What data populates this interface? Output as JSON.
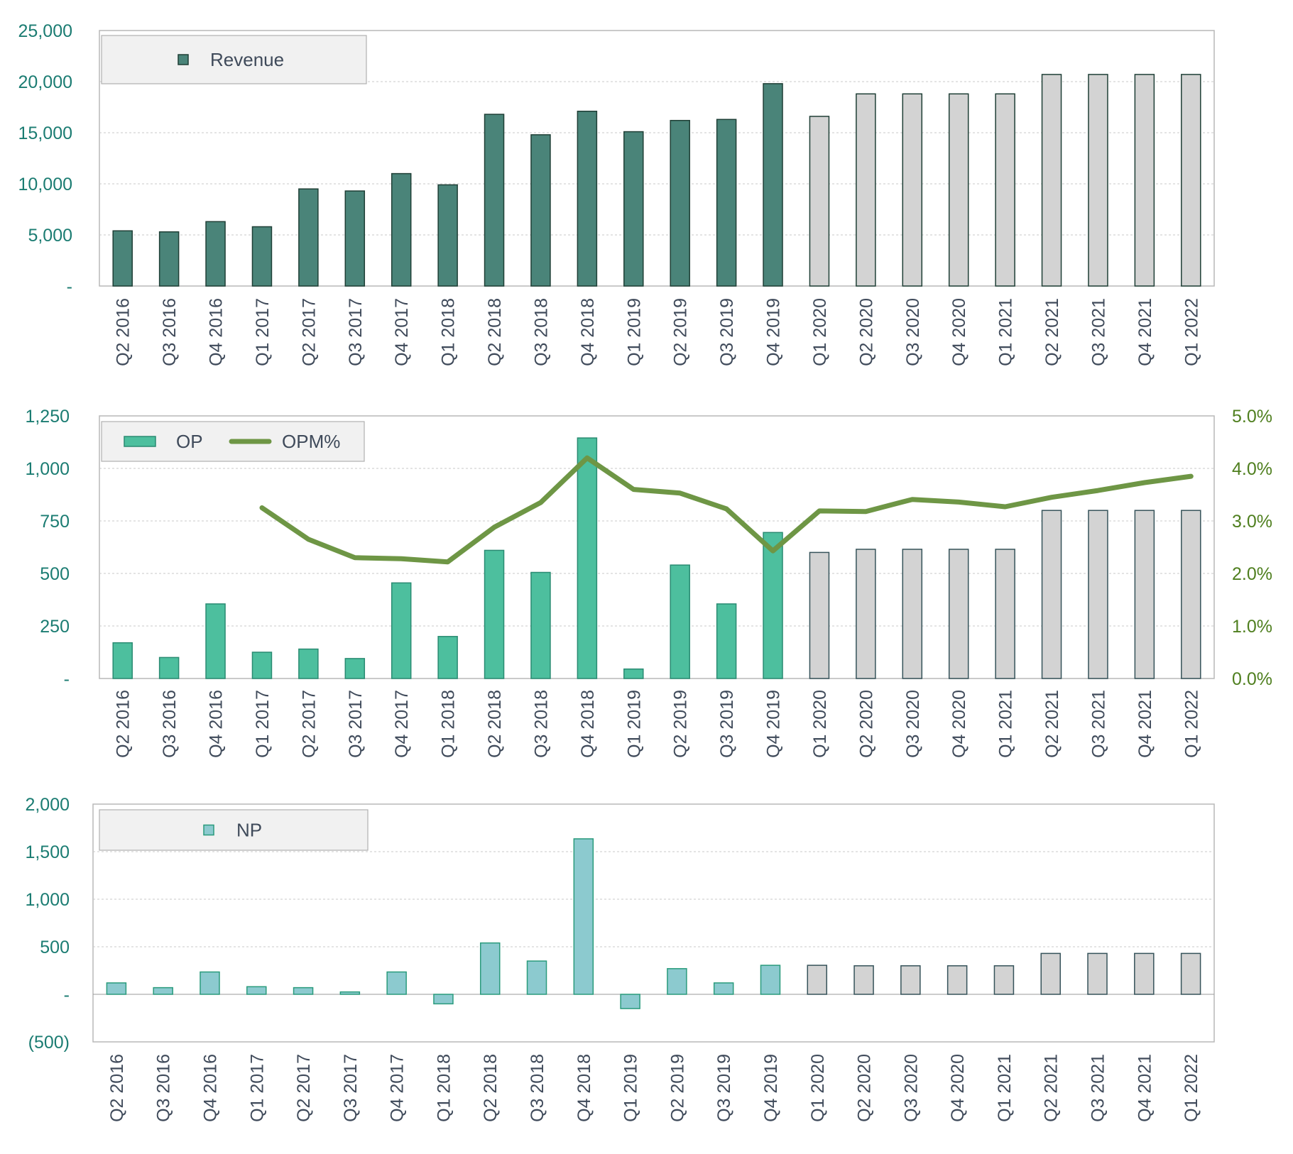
{
  "colors": {
    "revenue_actual": "#4a8479",
    "revenue_forecast": "#d3d3d3",
    "op_actual": "#4dbf9e",
    "np_actual": "#8ccacf",
    "forecast": "#d3d3d3",
    "opm_line": "#6e9645",
    "axis_left": "#1b7c72",
    "axis_right": "#4f7f1f",
    "tick_text": "#3f4a5a",
    "legend_bg": "#f1f1f1"
  },
  "chart_data": [
    {
      "id": "revenue",
      "type": "bar",
      "categories": [
        "Q2 2016",
        "Q3 2016",
        "Q4 2016",
        "Q1 2017",
        "Q2 2017",
        "Q3 2017",
        "Q4 2017",
        "Q1 2018",
        "Q2 2018",
        "Q3 2018",
        "Q4 2018",
        "Q1 2019",
        "Q2 2019",
        "Q3 2019",
        "Q4 2019",
        "Q1 2020",
        "Q2 2020",
        "Q3 2020",
        "Q4 2020",
        "Q1 2021",
        "Q2 2021",
        "Q3 2021",
        "Q4 2021",
        "Q1 2022"
      ],
      "series": [
        {
          "name": "Revenue",
          "values": [
            5400,
            5300,
            6300,
            5800,
            9500,
            9300,
            11000,
            9900,
            16800,
            14800,
            17100,
            15100,
            16200,
            16300,
            19800,
            16600,
            18800,
            18800,
            18800,
            18800,
            20700,
            20700,
            20700,
            20700
          ]
        }
      ],
      "forecast_from_index": 15,
      "ylim": [
        0,
        25000
      ],
      "yticks": [
        0,
        5000,
        10000,
        15000,
        20000,
        25000
      ],
      "ytick_labels": [
        "-",
        "5,000",
        "10,000",
        "15,000",
        "20,000",
        "25,000"
      ],
      "legend": [
        "Revenue"
      ],
      "legend_position": "top-left",
      "grid": true
    },
    {
      "id": "op",
      "type": "bar",
      "categories": [
        "Q2 2016",
        "Q3 2016",
        "Q4 2016",
        "Q1 2017",
        "Q2 2017",
        "Q3 2017",
        "Q4 2017",
        "Q1 2018",
        "Q2 2018",
        "Q3 2018",
        "Q4 2018",
        "Q1 2019",
        "Q2 2019",
        "Q3 2019",
        "Q4 2019",
        "Q1 2020",
        "Q2 2020",
        "Q3 2020",
        "Q4 2020",
        "Q1 2021",
        "Q2 2021",
        "Q3 2021",
        "Q4 2021",
        "Q1 2022"
      ],
      "series": [
        {
          "name": "OP",
          "type": "bar",
          "axis": "left",
          "values": [
            170,
            100,
            355,
            125,
            140,
            95,
            455,
            200,
            610,
            505,
            1145,
            45,
            540,
            355,
            695,
            600,
            615,
            615,
            615,
            615,
            800,
            800,
            800,
            800
          ]
        },
        {
          "name": "OPM%",
          "type": "line",
          "axis": "right",
          "values": [
            null,
            null,
            null,
            3.25,
            2.65,
            2.3,
            2.28,
            2.22,
            2.88,
            3.35,
            4.2,
            3.6,
            3.53,
            3.23,
            2.43,
            3.19,
            3.18,
            3.41,
            3.36,
            3.27,
            3.45,
            3.58,
            3.73,
            3.85
          ]
        }
      ],
      "forecast_from_index": 15,
      "ylim": [
        0,
        1250
      ],
      "yticks": [
        0,
        250,
        500,
        750,
        1000,
        1250
      ],
      "ytick_labels": [
        "-",
        "250",
        "500",
        "750",
        "1,000",
        "1,250"
      ],
      "y2lim": [
        0,
        5
      ],
      "y2ticks": [
        0,
        1,
        2,
        3,
        4,
        5
      ],
      "y2tick_labels": [
        "0.0%",
        "1.0%",
        "2.0%",
        "3.0%",
        "4.0%",
        "5.0%"
      ],
      "legend": [
        "OP",
        "OPM%"
      ],
      "legend_position": "top-left",
      "grid": true
    },
    {
      "id": "np",
      "type": "bar",
      "categories": [
        "Q2 2016",
        "Q3 2016",
        "Q4 2016",
        "Q1 2017",
        "Q2 2017",
        "Q3 2017",
        "Q4 2017",
        "Q1 2018",
        "Q2 2018",
        "Q3 2018",
        "Q4 2018",
        "Q1 2019",
        "Q2 2019",
        "Q3 2019",
        "Q4 2019",
        "Q1 2020",
        "Q2 2020",
        "Q3 2020",
        "Q4 2020",
        "Q1 2021",
        "Q2 2021",
        "Q3 2021",
        "Q4 2021",
        "Q1 2022"
      ],
      "series": [
        {
          "name": "NP",
          "values": [
            120,
            70,
            235,
            80,
            70,
            25,
            235,
            -100,
            540,
            350,
            1635,
            -150,
            270,
            120,
            305,
            305,
            300,
            300,
            300,
            300,
            430,
            430,
            430,
            430
          ]
        }
      ],
      "forecast_from_index": 15,
      "ylim": [
        -500,
        2000
      ],
      "yticks": [
        -500,
        0,
        500,
        1000,
        1500,
        2000
      ],
      "ytick_labels": [
        "(500)",
        "-",
        "500",
        "1,000",
        "1,500",
        "2,000"
      ],
      "legend": [
        "NP"
      ],
      "legend_position": "top-left",
      "grid": true
    }
  ]
}
